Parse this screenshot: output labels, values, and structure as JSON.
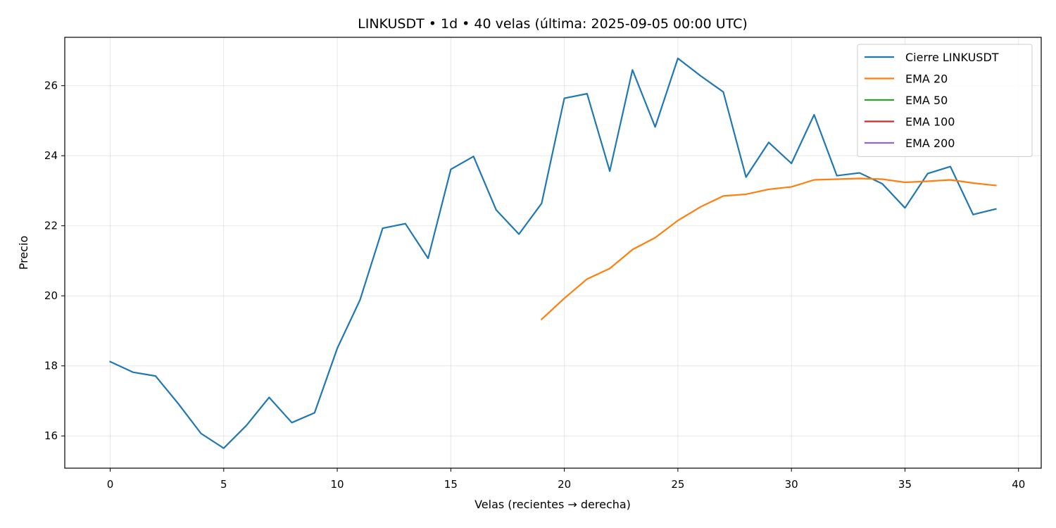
{
  "chart_data": {
    "type": "line",
    "title": "LINKUSDT • 1d • 40 velas  (última: 2025-09-05 00:00 UTC)",
    "xlabel": "Velas (recientes → derecha)",
    "ylabel": "Precio",
    "xlim": [
      -2,
      41
    ],
    "ylim": [
      15.08,
      27.38
    ],
    "xticks": [
      0,
      5,
      10,
      15,
      20,
      25,
      30,
      35,
      40
    ],
    "yticks": [
      16,
      18,
      20,
      22,
      24,
      26
    ],
    "grid": true,
    "legend_position": "top-right",
    "series": [
      {
        "name": "Cierre LINKUSDT",
        "color": "#1f77b4",
        "x": [
          0,
          1,
          2,
          3,
          4,
          5,
          6,
          7,
          8,
          9,
          10,
          11,
          12,
          13,
          14,
          15,
          16,
          17,
          18,
          19,
          20,
          21,
          22,
          23,
          24,
          25,
          26,
          27,
          28,
          29,
          30,
          31,
          32,
          33,
          34,
          35,
          36,
          37,
          38,
          39
        ],
        "y": [
          18.12,
          17.82,
          17.71,
          16.92,
          16.07,
          15.65,
          16.3,
          17.1,
          16.38,
          16.66,
          18.5,
          19.88,
          21.93,
          22.06,
          21.07,
          23.61,
          23.98,
          22.45,
          21.76,
          22.64,
          25.64,
          25.77,
          23.56,
          26.45,
          24.82,
          26.78,
          26.28,
          25.82,
          23.39,
          24.38,
          23.78,
          25.17,
          23.43,
          23.51,
          23.2,
          22.51,
          23.49,
          23.69,
          22.32,
          22.48
        ]
      },
      {
        "name": "EMA 20",
        "color": "#ff7f0e",
        "x": [
          19,
          20,
          21,
          22,
          23,
          24,
          25,
          26,
          27,
          28,
          29,
          30,
          31,
          32,
          33,
          34,
          35,
          36,
          37,
          38,
          39
        ],
        "y": [
          19.33,
          19.93,
          20.48,
          20.78,
          21.32,
          21.66,
          22.15,
          22.54,
          22.85,
          22.9,
          23.04,
          23.11,
          23.31,
          23.33,
          23.35,
          23.33,
          23.24,
          23.27,
          23.31,
          23.22,
          23.15
        ]
      },
      {
        "name": "EMA 50",
        "color": "#2ca02c",
        "x": [],
        "y": []
      },
      {
        "name": "EMA 100",
        "color": "#d62728",
        "x": [],
        "y": []
      },
      {
        "name": "EMA 200",
        "color": "#9467bd",
        "x": [],
        "y": []
      }
    ]
  }
}
